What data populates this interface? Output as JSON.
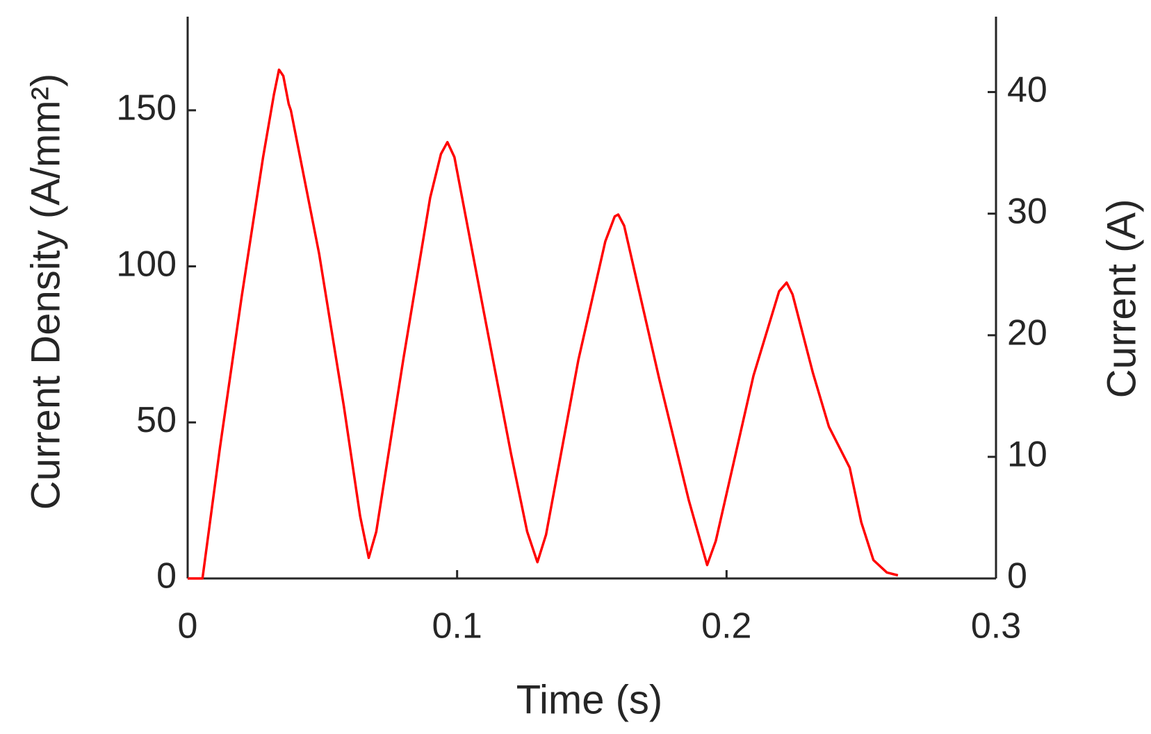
{
  "chart_data": {
    "type": "line",
    "xlabel": "Time (s)",
    "ylabel": "Current Density (A/mm²)",
    "y2label": "Current (A)",
    "xlim": [
      0,
      0.3
    ],
    "xticks": [
      0,
      0.1,
      0.2,
      0.3
    ],
    "ylim": [
      0,
      180
    ],
    "yticks": [
      0,
      50,
      100,
      150
    ],
    "y2lim": [
      0,
      46.2
    ],
    "y2ticks": [
      0,
      10,
      20,
      30,
      40
    ],
    "series": [
      {
        "color": "#ff0000",
        "x": [
          0,
          0.0055,
          0.012,
          0.02,
          0.028,
          0.032,
          0.0339,
          0.0355,
          0.0375,
          0.0383,
          0.0488,
          0.058,
          0.064,
          0.0672,
          0.07,
          0.08,
          0.09,
          0.094,
          0.0964,
          0.099,
          0.11,
          0.12,
          0.126,
          0.1298,
          0.133,
          0.145,
          0.155,
          0.1585,
          0.1598,
          0.162,
          0.175,
          0.186,
          0.1928,
          0.196,
          0.21,
          0.2195,
          0.2223,
          0.2245,
          0.232,
          0.238,
          0.2457,
          0.25,
          0.2545,
          0.2595,
          0.2636
        ],
        "values": [
          0,
          0,
          42,
          90,
          135,
          155,
          163,
          161,
          152,
          150,
          104,
          55,
          20,
          6.6,
          15,
          70,
          122,
          136,
          139.8,
          135,
          85,
          40,
          15,
          5.2,
          14,
          70,
          108,
          116,
          116.6,
          113,
          64,
          25,
          4.3,
          12,
          65,
          92,
          94.8,
          91,
          66,
          48.6,
          35.5,
          18,
          5.9,
          1.9,
          1
        ]
      }
    ]
  }
}
